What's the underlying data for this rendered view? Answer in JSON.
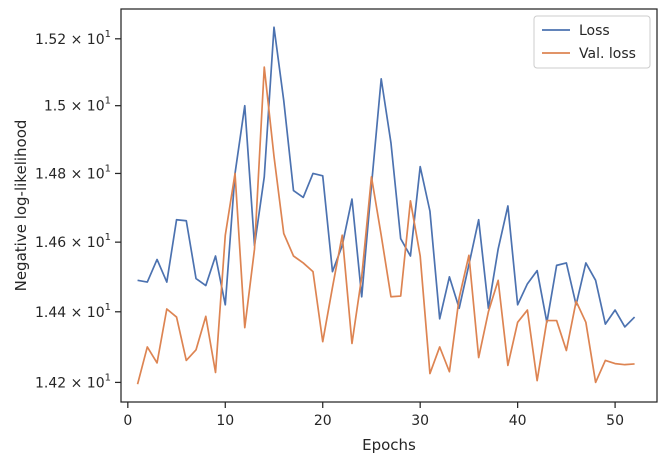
{
  "chart_data": {
    "type": "line",
    "title": "",
    "xlabel": "Epochs",
    "ylabel": "Negative log-likelihood",
    "yscale": "log",
    "xlim": [
      -0.7,
      54.3
    ],
    "ylim": [
      14.145,
      15.29
    ],
    "grid": false,
    "legend_position": "top-right",
    "x_ticks": [
      0,
      10,
      20,
      30,
      40,
      50
    ],
    "y_ticks": [
      {
        "value": 14.2,
        "mantissa": "1.42"
      },
      {
        "value": 14.4,
        "mantissa": "1.44"
      },
      {
        "value": 14.6,
        "mantissa": "1.46"
      },
      {
        "value": 14.8,
        "mantissa": "1.48"
      },
      {
        "value": 15.0,
        "mantissa": "1.5"
      },
      {
        "value": 15.2,
        "mantissa": "1.52"
      }
    ],
    "y_tick_suffix": {
      "times": "×",
      "base": "10",
      "exponent": "1"
    },
    "x": [
      1,
      2,
      3,
      4,
      5,
      6,
      7,
      8,
      9,
      10,
      11,
      12,
      13,
      14,
      15,
      16,
      17,
      18,
      19,
      20,
      21,
      22,
      23,
      24,
      25,
      26,
      27,
      28,
      29,
      30,
      31,
      32,
      33,
      34,
      35,
      36,
      37,
      38,
      39,
      40,
      41,
      42,
      43,
      44,
      45,
      46,
      47,
      48,
      49,
      50,
      51,
      52
    ],
    "series": [
      {
        "name": "Loss",
        "color": "#4c72b0",
        "values": [
          14.49,
          14.485,
          14.55,
          14.485,
          14.665,
          14.662,
          14.495,
          14.475,
          14.56,
          14.42,
          14.8,
          15.0,
          14.59,
          14.79,
          15.235,
          15.015,
          14.75,
          14.73,
          14.8,
          14.793,
          14.515,
          14.59,
          14.725,
          14.443,
          14.765,
          15.08,
          14.89,
          14.61,
          14.56,
          14.82,
          14.69,
          14.38,
          14.5,
          14.41,
          14.535,
          14.665,
          14.41,
          14.58,
          14.705,
          14.42,
          14.48,
          14.518,
          14.37,
          14.533,
          14.54,
          14.42,
          14.54,
          14.49,
          14.365,
          14.405,
          14.357,
          14.385
        ]
      },
      {
        "name": "Val. loss",
        "color": "#dd8452",
        "values": [
          14.195,
          14.3,
          14.255,
          14.408,
          14.385,
          14.262,
          14.292,
          14.387,
          14.228,
          14.62,
          14.8,
          14.355,
          14.58,
          15.115,
          14.85,
          14.625,
          14.56,
          14.54,
          14.515,
          14.315,
          14.47,
          14.62,
          14.31,
          14.5,
          14.79,
          14.62,
          14.443,
          14.445,
          14.72,
          14.56,
          14.225,
          14.3,
          14.23,
          14.44,
          14.562,
          14.27,
          14.4,
          14.49,
          14.248,
          14.37,
          14.405,
          14.205,
          14.375,
          14.375,
          14.29,
          14.43,
          14.37,
          14.2,
          14.262,
          14.253,
          14.25,
          14.252
        ]
      }
    ]
  }
}
